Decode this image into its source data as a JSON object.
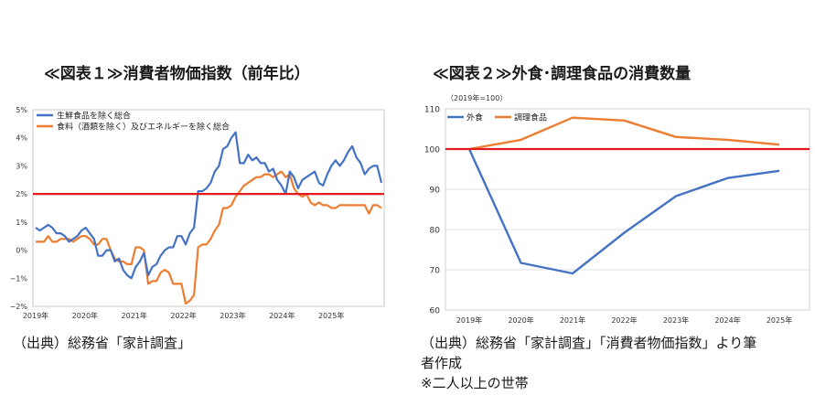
{
  "chart_data": [
    {
      "type": "line",
      "title": "≪図表１≫消費者物価指数（前年比）",
      "y_ticks": [
        "5%",
        "4%",
        "3%",
        "2%",
        "1%",
        "0%",
        "−1%",
        "−2%"
      ],
      "ylim": [
        -2,
        5
      ],
      "x_tick_labels": [
        "2019年",
        "2020年",
        "2021年",
        "2022年",
        "2023年",
        "2024年",
        "2025年"
      ],
      "reference_line": {
        "value": 2,
        "color": "#e41a1c"
      },
      "legend_position": "top-left",
      "source_lines": [
        "（出典）総務省「家計調査」"
      ],
      "series": [
        {
          "name": "生鮮食品を除く総合",
          "color": "#4472c4",
          "values": [
            0.8,
            0.7,
            0.8,
            0.9,
            0.8,
            0.6,
            0.6,
            0.5,
            0.3,
            0.4,
            0.5,
            0.7,
            0.8,
            0.6,
            0.4,
            -0.2,
            -0.2,
            0.0,
            0.0,
            -0.4,
            -0.3,
            -0.7,
            -0.9,
            -1.0,
            -0.6,
            -0.4,
            -0.1,
            -0.9,
            -0.6,
            -0.5,
            -0.2,
            0.0,
            0.1,
            0.1,
            0.5,
            0.5,
            0.2,
            0.6,
            0.8,
            2.1,
            2.1,
            2.2,
            2.4,
            2.8,
            3.0,
            3.6,
            3.7,
            4.0,
            4.2,
            3.1,
            3.1,
            3.4,
            3.2,
            3.3,
            3.1,
            3.1,
            2.8,
            2.9,
            2.5,
            2.3,
            2.0,
            2.8,
            2.6,
            2.2,
            2.5,
            2.6,
            2.7,
            2.8,
            2.4,
            2.3,
            2.7,
            3.0,
            3.2,
            3.0,
            3.2,
            3.5,
            3.7,
            3.3,
            3.1,
            2.7,
            2.9,
            3.0,
            3.0,
            2.4
          ]
        },
        {
          "name": "食料（酒類を除く）及びエネルギーを除く総合",
          "color": "#ed7d31",
          "values": [
            0.3,
            0.3,
            0.3,
            0.5,
            0.3,
            0.3,
            0.4,
            0.4,
            0.4,
            0.3,
            0.4,
            0.5,
            0.5,
            0.4,
            0.2,
            0.2,
            0.4,
            0.4,
            0.0,
            -0.3,
            -0.4,
            -0.4,
            -0.5,
            -0.5,
            0.1,
            0.1,
            0.0,
            -1.2,
            -1.1,
            -1.1,
            -0.8,
            -0.7,
            -0.8,
            -1.2,
            -1.2,
            -1.2,
            -1.9,
            -1.8,
            -1.6,
            0.1,
            0.2,
            0.2,
            0.4,
            0.7,
            0.9,
            1.5,
            1.5,
            1.6,
            1.9,
            2.1,
            2.3,
            2.4,
            2.5,
            2.6,
            2.6,
            2.7,
            2.7,
            2.6,
            2.7,
            2.8,
            2.6,
            2.7,
            2.2,
            2.0,
            1.9,
            2.0,
            1.7,
            1.6,
            1.7,
            1.6,
            1.6,
            1.5,
            1.5,
            1.6,
            1.6,
            1.6,
            1.6,
            1.6,
            1.6,
            1.6,
            1.3,
            1.6,
            1.6,
            1.5
          ]
        }
      ]
    },
    {
      "type": "line",
      "title": "≪図表２≫外食･調理食品の消費数量",
      "subtitle": "（2019年=100）",
      "y_ticks": [
        "110",
        "100",
        "90",
        "80",
        "70",
        "60"
      ],
      "ylim": [
        60,
        110
      ],
      "categories": [
        "2019年",
        "2020年",
        "2021年",
        "2022年",
        "2023年",
        "2024年",
        "2025年"
      ],
      "reference_line": {
        "value": 100,
        "color": "#e41a1c"
      },
      "legend_position": "top-left",
      "source_lines": [
        "（出典）総務省「家計調査」「消費者物価指数」より筆",
        "者作成",
        "※二人以上の世帯"
      ],
      "series": [
        {
          "name": "外食",
          "color": "#4472c4",
          "values": [
            100.0,
            71.7,
            69.1,
            79.2,
            88.3,
            92.8,
            94.6
          ]
        },
        {
          "name": "調理食品",
          "color": "#ed7d31",
          "values": [
            100.0,
            102.3,
            107.8,
            107.1,
            103.0,
            102.3,
            101.1
          ]
        }
      ]
    }
  ]
}
